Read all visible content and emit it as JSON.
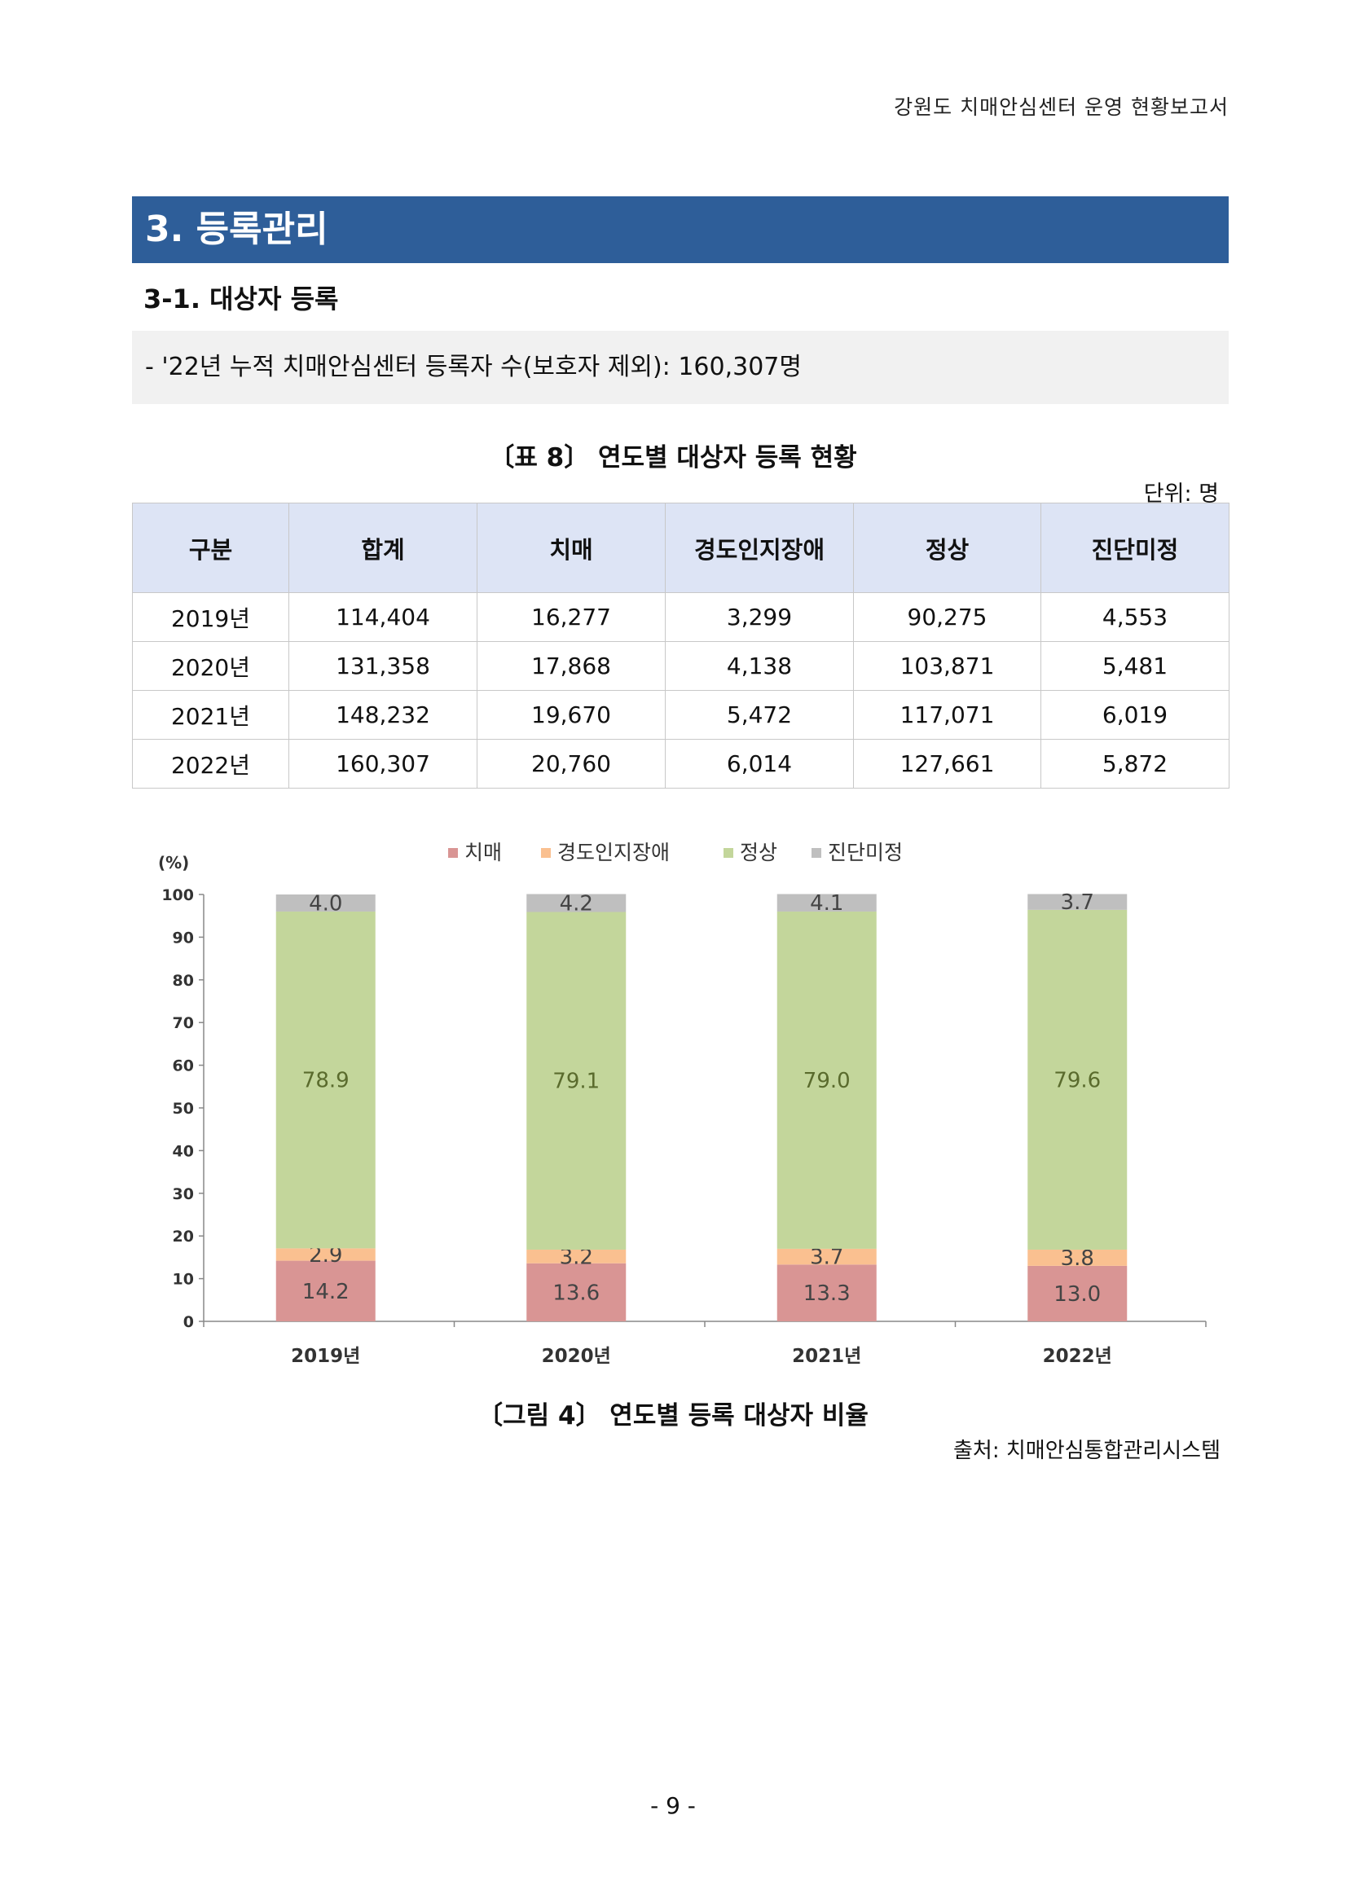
{
  "header": {
    "running_title": "강원도 치매안심센터 운영 현황보고서"
  },
  "section": {
    "title": "3. 등록관리"
  },
  "subsection": {
    "title": "3-1. 대상자 등록"
  },
  "summary": {
    "text": "- '22년 누적 치매안심센터 등록자 수(보호자 제외): 160,307명"
  },
  "table": {
    "caption": "〔표 8〕 연도별 대상자 등록 현황",
    "unit": "단위: 명",
    "headers": [
      "구분",
      "합계",
      "치매",
      "경도인지장애",
      "정상",
      "진단미정"
    ],
    "rows": [
      [
        "2019년",
        "114,404",
        "16,277",
        "3,299",
        "90,275",
        "4,553"
      ],
      [
        "2020년",
        "131,358",
        "17,868",
        "4,138",
        "103,871",
        "5,481"
      ],
      [
        "2021년",
        "148,232",
        "19,670",
        "5,472",
        "117,071",
        "6,019"
      ],
      [
        "2022년",
        "160,307",
        "20,760",
        "6,014",
        "127,661",
        "5,872"
      ]
    ]
  },
  "figure": {
    "caption": "〔그림 4〕 연도별 등록 대상자 비율",
    "source": "출처: 치매안심통합관리시스템"
  },
  "chart_data": {
    "type": "bar",
    "stacked": true,
    "ylabel": "(%)",
    "ylim": [
      0,
      100
    ],
    "yticks": [
      0,
      10,
      20,
      30,
      40,
      50,
      60,
      70,
      80,
      90,
      100
    ],
    "categories": [
      "2019년",
      "2020년",
      "2021년",
      "2022년"
    ],
    "legend_position": "top",
    "series": [
      {
        "name": "치매",
        "color": "#d99594",
        "values": [
          14.2,
          13.6,
          13.3,
          13.0
        ]
      },
      {
        "name": "경도인지장애",
        "color": "#fac090",
        "values": [
          2.9,
          3.2,
          3.7,
          3.8
        ]
      },
      {
        "name": "정상",
        "color": "#c3d69b",
        "values": [
          78.9,
          79.1,
          79.0,
          79.6
        ]
      },
      {
        "name": "진단미정",
        "color": "#bfbfbf",
        "values": [
          4.0,
          4.2,
          4.1,
          3.7
        ]
      }
    ]
  },
  "footer": {
    "page_number": "- 9 -"
  }
}
